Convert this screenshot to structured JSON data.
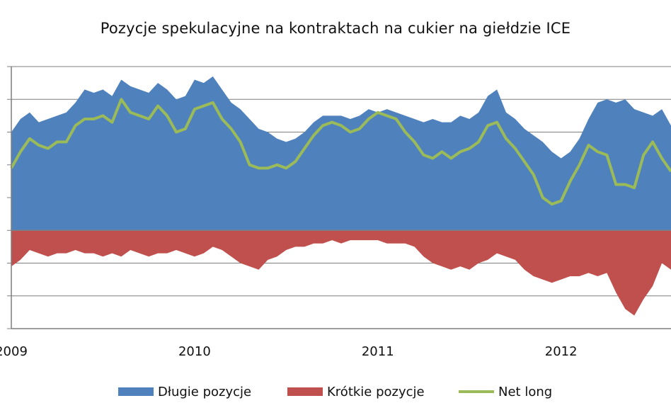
{
  "title": "Pozycje spekulacyjne na kontraktach na cukier na giełdzie ICE",
  "colors": {
    "long": "#4f81bd",
    "short": "#c0504d",
    "net": "#9bbb59",
    "grid": "#7f7f7f",
    "axis": "#7f7f7f"
  },
  "chart_data": {
    "type": "area",
    "title": "Pozycje spekulacyjne na kontraktach na cukier na giełdzie ICE",
    "xlabel": "",
    "ylabel": "",
    "x_ticks": [
      "2009",
      "2010",
      "2011",
      "2012"
    ],
    "x_tick_values": [
      2009.0,
      2010.0,
      2011.0,
      2012.0
    ],
    "xlim": [
      2009.0,
      2012.6
    ],
    "ylim": [
      -3,
      5
    ],
    "y_unit_note": "relative gridline units (y-axis labels not visible)",
    "grid": "horizontal",
    "legend_position": "bottom",
    "x": [
      2009.0,
      2009.05,
      2009.1,
      2009.15,
      2009.2,
      2009.25,
      2009.3,
      2009.35,
      2009.4,
      2009.45,
      2009.5,
      2009.55,
      2009.6,
      2009.65,
      2009.7,
      2009.75,
      2009.8,
      2009.85,
      2009.9,
      2009.95,
      2010.0,
      2010.05,
      2010.1,
      2010.15,
      2010.2,
      2010.25,
      2010.3,
      2010.35,
      2010.4,
      2010.45,
      2010.5,
      2010.55,
      2010.6,
      2010.65,
      2010.7,
      2010.75,
      2010.8,
      2010.85,
      2010.9,
      2010.95,
      2011.0,
      2011.05,
      2011.1,
      2011.15,
      2011.2,
      2011.25,
      2011.3,
      2011.35,
      2011.4,
      2011.45,
      2011.5,
      2011.55,
      2011.6,
      2011.65,
      2011.7,
      2011.75,
      2011.8,
      2011.85,
      2011.9,
      2011.95,
      2012.0,
      2012.05,
      2012.1,
      2012.15,
      2012.2,
      2012.25,
      2012.3,
      2012.35,
      2012.4,
      2012.45,
      2012.5,
      2012.55,
      2012.6
    ],
    "series": [
      {
        "name": "Długie pozycje",
        "values": [
          3.0,
          3.4,
          3.6,
          3.3,
          3.4,
          3.5,
          3.6,
          3.9,
          4.3,
          4.2,
          4.3,
          4.1,
          4.6,
          4.4,
          4.3,
          4.2,
          4.5,
          4.3,
          4.0,
          4.1,
          4.6,
          4.5,
          4.7,
          4.3,
          3.9,
          3.7,
          3.4,
          3.1,
          3.0,
          2.8,
          2.7,
          2.8,
          3.0,
          3.3,
          3.5,
          3.5,
          3.5,
          3.4,
          3.5,
          3.7,
          3.6,
          3.7,
          3.6,
          3.5,
          3.4,
          3.3,
          3.4,
          3.3,
          3.3,
          3.5,
          3.4,
          3.6,
          4.1,
          4.3,
          3.6,
          3.4,
          3.1,
          2.9,
          2.7,
          2.4,
          2.2,
          2.4,
          2.8,
          3.4,
          3.9,
          4.0,
          3.9,
          4.0,
          3.7,
          3.6,
          3.5,
          3.7,
          3.2
        ]
      },
      {
        "name": "Krótkie pozycje",
        "values": [
          -1.1,
          -0.9,
          -0.6,
          -0.7,
          -0.8,
          -0.7,
          -0.7,
          -0.6,
          -0.7,
          -0.7,
          -0.8,
          -0.7,
          -0.8,
          -0.6,
          -0.7,
          -0.8,
          -0.7,
          -0.7,
          -0.6,
          -0.7,
          -0.8,
          -0.7,
          -0.5,
          -0.6,
          -0.8,
          -1.0,
          -1.1,
          -1.2,
          -0.9,
          -0.8,
          -0.6,
          -0.5,
          -0.5,
          -0.4,
          -0.4,
          -0.3,
          -0.4,
          -0.3,
          -0.3,
          -0.3,
          -0.3,
          -0.4,
          -0.4,
          -0.4,
          -0.5,
          -0.8,
          -1.0,
          -1.1,
          -1.2,
          -1.1,
          -1.2,
          -1.0,
          -0.9,
          -0.7,
          -0.8,
          -0.9,
          -1.2,
          -1.4,
          -1.5,
          -1.6,
          -1.5,
          -1.4,
          -1.4,
          -1.3,
          -1.4,
          -1.3,
          -1.9,
          -2.4,
          -2.6,
          -2.1,
          -1.7,
          -1.0,
          -1.2
        ]
      },
      {
        "name": "Net long",
        "values": [
          1.9,
          2.4,
          2.8,
          2.6,
          2.5,
          2.7,
          2.7,
          3.2,
          3.4,
          3.4,
          3.5,
          3.3,
          4.0,
          3.6,
          3.5,
          3.4,
          3.8,
          3.5,
          3.0,
          3.1,
          3.7,
          3.8,
          3.9,
          3.4,
          3.1,
          2.7,
          2.0,
          1.9,
          1.9,
          2.0,
          1.9,
          2.1,
          2.5,
          2.9,
          3.2,
          3.3,
          3.2,
          3.0,
          3.1,
          3.4,
          3.6,
          3.5,
          3.4,
          3.0,
          2.7,
          2.3,
          2.2,
          2.4,
          2.2,
          2.4,
          2.5,
          2.7,
          3.2,
          3.3,
          2.8,
          2.5,
          2.1,
          1.7,
          1.0,
          0.8,
          0.9,
          1.5,
          2.0,
          2.6,
          2.4,
          2.3,
          1.4,
          1.4,
          1.3,
          2.3,
          2.7,
          2.2,
          1.8
        ]
      }
    ]
  },
  "legend": [
    {
      "label": "Długie pozycje",
      "kind": "area",
      "color": "#4f81bd"
    },
    {
      "label": "Krótkie pozycje",
      "kind": "area",
      "color": "#c0504d"
    },
    {
      "label": "Net long",
      "kind": "line",
      "color": "#9bbb59"
    }
  ]
}
